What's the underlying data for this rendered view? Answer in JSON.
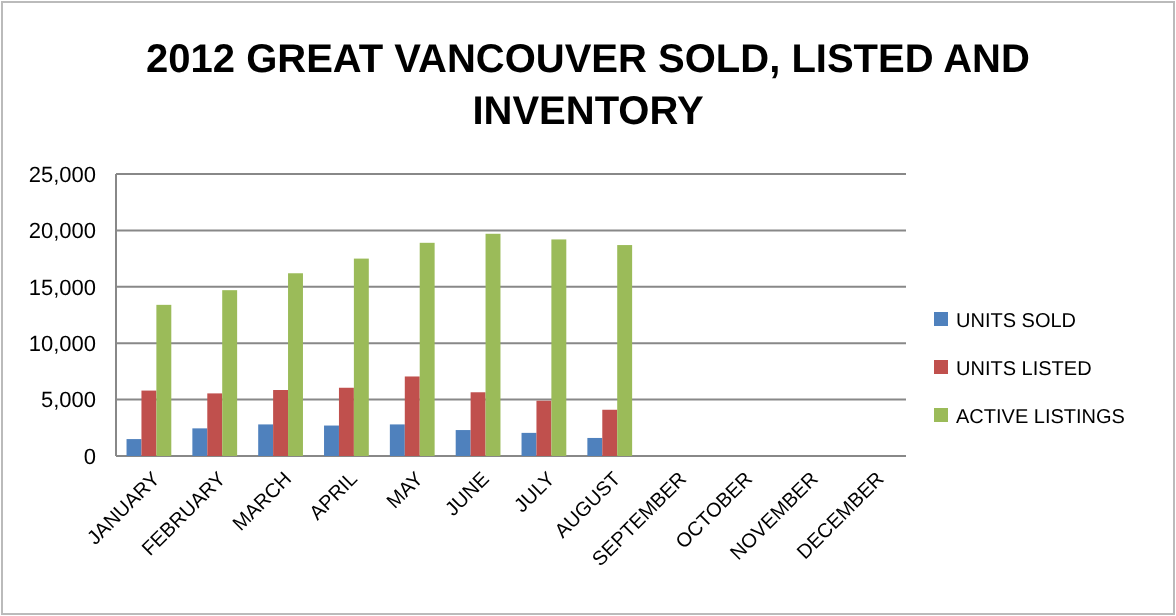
{
  "chart_data": {
    "type": "bar",
    "title": "2012 GREAT VANCOUVER  SOLD, LISTED AND INVENTORY",
    "categories": [
      "JANUARY",
      "FEBRUARY",
      "MARCH",
      "APRIL",
      "MAY",
      "JUNE",
      "JULY",
      "AUGUST",
      "SEPTEMBER",
      "OCTOBER",
      "NOVEMBER",
      "DECEMBER"
    ],
    "series": [
      {
        "name": "UNITS SOLD",
        "color": "#4f81bd",
        "values": [
          1500,
          2450,
          2800,
          2700,
          2800,
          2300,
          2050,
          1600,
          null,
          null,
          null,
          null
        ]
      },
      {
        "name": "UNITS LISTED",
        "color": "#c0504d",
        "values": [
          5800,
          5550,
          5850,
          6050,
          7050,
          5650,
          4900,
          4100,
          null,
          null,
          null,
          null
        ]
      },
      {
        "name": "ACTIVE LISTINGS",
        "color": "#9bbb59",
        "values": [
          13400,
          14700,
          16200,
          17500,
          18900,
          19700,
          19200,
          18700,
          null,
          null,
          null,
          null
        ]
      }
    ],
    "ylim": [
      0,
      25000
    ],
    "yticks": [
      {
        "value": 0,
        "label": "0"
      },
      {
        "value": 5000,
        "label": "5,000"
      },
      {
        "value": 10000,
        "label": "10,000"
      },
      {
        "value": 15000,
        "label": "15,000"
      },
      {
        "value": 20000,
        "label": "20,000"
      },
      {
        "value": 25000,
        "label": "25,000"
      }
    ],
    "grid": "y",
    "legend": "right"
  }
}
